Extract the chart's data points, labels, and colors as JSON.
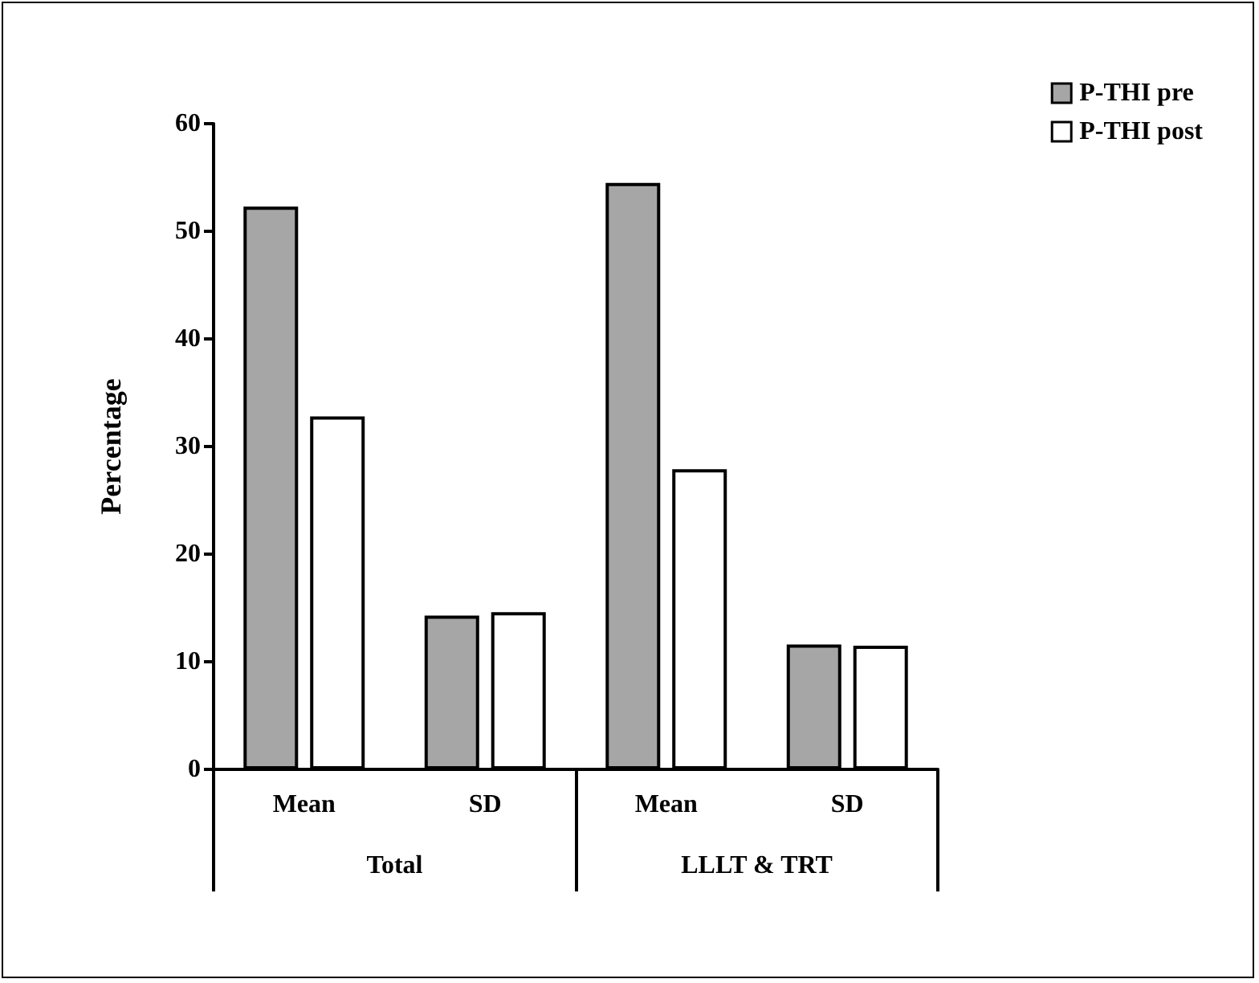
{
  "chart_data": {
    "type": "bar",
    "ylabel": "Percentage",
    "categories": [
      "Mean",
      "SD",
      "Mean",
      "SD"
    ],
    "series": [
      {
        "name": "P-THI pre",
        "color": "#a6a6a6",
        "values": [
          52.3,
          14.3,
          54.5,
          11.6
        ]
      },
      {
        "name": "P-THI post",
        "color": "#ffffff",
        "values": [
          32.8,
          14.6,
          27.9,
          11.5
        ]
      }
    ],
    "annotations": [
      "Total",
      "LLLT & TRT"
    ],
    "ylim": [
      0,
      60
    ],
    "yticks": [
      0,
      10,
      20,
      30,
      40,
      50,
      60
    ],
    "grid": false,
    "legend": "top right"
  }
}
